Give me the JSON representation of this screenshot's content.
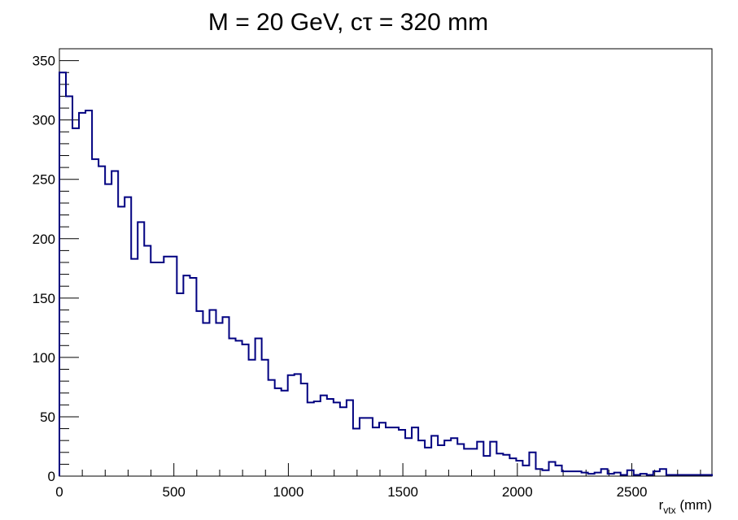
{
  "chart_data": {
    "type": "histogram",
    "title": "M = 20 GeV,   cτ = 320 mm",
    "xlabel": {
      "main": "r",
      "subscript": "vtx",
      "suffix": " (mm)"
    },
    "ylabel": "",
    "xlim": [
      0,
      2850
    ],
    "ylim": [
      0,
      360
    ],
    "bin_width": 28.5,
    "x_ticks": [
      0,
      500,
      1000,
      1500,
      2000,
      2500
    ],
    "y_ticks": [
      0,
      50,
      100,
      150,
      200,
      250,
      300,
      350
    ],
    "x_tick_labels": [
      "0",
      "500",
      "1000",
      "1500",
      "2000",
      "2500"
    ],
    "y_tick_labels": [
      "0",
      "50",
      "100",
      "150",
      "200",
      "250",
      "300",
      "350"
    ],
    "grid": false,
    "legend": "none",
    "line_color": "#000080",
    "values": [
      340,
      320,
      293,
      306,
      308,
      267,
      261,
      246,
      257,
      227,
      235,
      183,
      214,
      194,
      180,
      180,
      185,
      185,
      154,
      169,
      167,
      139,
      129,
      140,
      129,
      134,
      116,
      114,
      111,
      98,
      116,
      98,
      81,
      74,
      72,
      85,
      86,
      78,
      62,
      63,
      68,
      65,
      62,
      58,
      64,
      40,
      49,
      49,
      41,
      45,
      41,
      41,
      39,
      32,
      41,
      30,
      24,
      34,
      26,
      30,
      32,
      27,
      23,
      23,
      29,
      17,
      29,
      19,
      18,
      15,
      13,
      9,
      20,
      6,
      5,
      12,
      9,
      4,
      4,
      4,
      3,
      2,
      3,
      6,
      2,
      3,
      1,
      5,
      1,
      2,
      1,
      4,
      6,
      1,
      1,
      1,
      1,
      1,
      1,
      1
    ]
  }
}
